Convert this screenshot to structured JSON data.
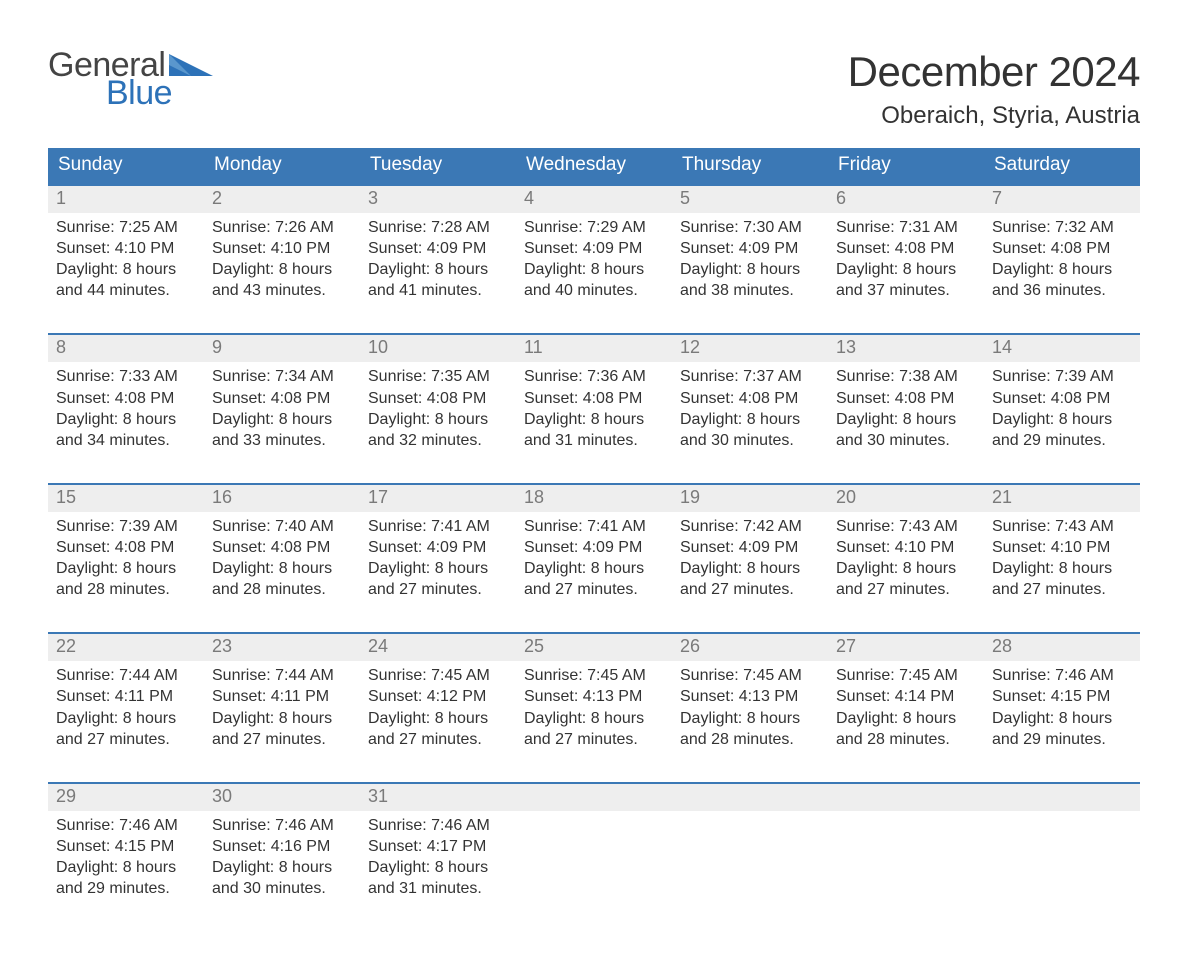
{
  "brand": {
    "word1": "General",
    "word2": "Blue",
    "tri_color": "#2d72b8",
    "word1_color": "#444444",
    "word2_color": "#2d72b8"
  },
  "title": "December 2024",
  "location": "Oberaich, Styria, Austria",
  "colors": {
    "header_bg": "#3b78b5",
    "header_text": "#ffffff",
    "week_border": "#3b78b5",
    "daynum_bg": "#eeeeee",
    "daynum_text": "#7a7a7a",
    "body_text": "#333333",
    "page_bg": "#ffffff"
  },
  "dow": [
    "Sunday",
    "Monday",
    "Tuesday",
    "Wednesday",
    "Thursday",
    "Friday",
    "Saturday"
  ],
  "weeks": [
    [
      {
        "num": "1",
        "sunrise": "7:25 AM",
        "sunset": "4:10 PM",
        "dl1": "8 hours",
        "dl2": "and 44 minutes."
      },
      {
        "num": "2",
        "sunrise": "7:26 AM",
        "sunset": "4:10 PM",
        "dl1": "8 hours",
        "dl2": "and 43 minutes."
      },
      {
        "num": "3",
        "sunrise": "7:28 AM",
        "sunset": "4:09 PM",
        "dl1": "8 hours",
        "dl2": "and 41 minutes."
      },
      {
        "num": "4",
        "sunrise": "7:29 AM",
        "sunset": "4:09 PM",
        "dl1": "8 hours",
        "dl2": "and 40 minutes."
      },
      {
        "num": "5",
        "sunrise": "7:30 AM",
        "sunset": "4:09 PM",
        "dl1": "8 hours",
        "dl2": "and 38 minutes."
      },
      {
        "num": "6",
        "sunrise": "7:31 AM",
        "sunset": "4:08 PM",
        "dl1": "8 hours",
        "dl2": "and 37 minutes."
      },
      {
        "num": "7",
        "sunrise": "7:32 AM",
        "sunset": "4:08 PM",
        "dl1": "8 hours",
        "dl2": "and 36 minutes."
      }
    ],
    [
      {
        "num": "8",
        "sunrise": "7:33 AM",
        "sunset": "4:08 PM",
        "dl1": "8 hours",
        "dl2": "and 34 minutes."
      },
      {
        "num": "9",
        "sunrise": "7:34 AM",
        "sunset": "4:08 PM",
        "dl1": "8 hours",
        "dl2": "and 33 minutes."
      },
      {
        "num": "10",
        "sunrise": "7:35 AM",
        "sunset": "4:08 PM",
        "dl1": "8 hours",
        "dl2": "and 32 minutes."
      },
      {
        "num": "11",
        "sunrise": "7:36 AM",
        "sunset": "4:08 PM",
        "dl1": "8 hours",
        "dl2": "and 31 minutes."
      },
      {
        "num": "12",
        "sunrise": "7:37 AM",
        "sunset": "4:08 PM",
        "dl1": "8 hours",
        "dl2": "and 30 minutes."
      },
      {
        "num": "13",
        "sunrise": "7:38 AM",
        "sunset": "4:08 PM",
        "dl1": "8 hours",
        "dl2": "and 30 minutes."
      },
      {
        "num": "14",
        "sunrise": "7:39 AM",
        "sunset": "4:08 PM",
        "dl1": "8 hours",
        "dl2": "and 29 minutes."
      }
    ],
    [
      {
        "num": "15",
        "sunrise": "7:39 AM",
        "sunset": "4:08 PM",
        "dl1": "8 hours",
        "dl2": "and 28 minutes."
      },
      {
        "num": "16",
        "sunrise": "7:40 AM",
        "sunset": "4:08 PM",
        "dl1": "8 hours",
        "dl2": "and 28 minutes."
      },
      {
        "num": "17",
        "sunrise": "7:41 AM",
        "sunset": "4:09 PM",
        "dl1": "8 hours",
        "dl2": "and 27 minutes."
      },
      {
        "num": "18",
        "sunrise": "7:41 AM",
        "sunset": "4:09 PM",
        "dl1": "8 hours",
        "dl2": "and 27 minutes."
      },
      {
        "num": "19",
        "sunrise": "7:42 AM",
        "sunset": "4:09 PM",
        "dl1": "8 hours",
        "dl2": "and 27 minutes."
      },
      {
        "num": "20",
        "sunrise": "7:43 AM",
        "sunset": "4:10 PM",
        "dl1": "8 hours",
        "dl2": "and 27 minutes."
      },
      {
        "num": "21",
        "sunrise": "7:43 AM",
        "sunset": "4:10 PM",
        "dl1": "8 hours",
        "dl2": "and 27 minutes."
      }
    ],
    [
      {
        "num": "22",
        "sunrise": "7:44 AM",
        "sunset": "4:11 PM",
        "dl1": "8 hours",
        "dl2": "and 27 minutes."
      },
      {
        "num": "23",
        "sunrise": "7:44 AM",
        "sunset": "4:11 PM",
        "dl1": "8 hours",
        "dl2": "and 27 minutes."
      },
      {
        "num": "24",
        "sunrise": "7:45 AM",
        "sunset": "4:12 PM",
        "dl1": "8 hours",
        "dl2": "and 27 minutes."
      },
      {
        "num": "25",
        "sunrise": "7:45 AM",
        "sunset": "4:13 PM",
        "dl1": "8 hours",
        "dl2": "and 27 minutes."
      },
      {
        "num": "26",
        "sunrise": "7:45 AM",
        "sunset": "4:13 PM",
        "dl1": "8 hours",
        "dl2": "and 28 minutes."
      },
      {
        "num": "27",
        "sunrise": "7:45 AM",
        "sunset": "4:14 PM",
        "dl1": "8 hours",
        "dl2": "and 28 minutes."
      },
      {
        "num": "28",
        "sunrise": "7:46 AM",
        "sunset": "4:15 PM",
        "dl1": "8 hours",
        "dl2": "and 29 minutes."
      }
    ],
    [
      {
        "num": "29",
        "sunrise": "7:46 AM",
        "sunset": "4:15 PM",
        "dl1": "8 hours",
        "dl2": "and 29 minutes."
      },
      {
        "num": "30",
        "sunrise": "7:46 AM",
        "sunset": "4:16 PM",
        "dl1": "8 hours",
        "dl2": "and 30 minutes."
      },
      {
        "num": "31",
        "sunrise": "7:46 AM",
        "sunset": "4:17 PM",
        "dl1": "8 hours",
        "dl2": "and 31 minutes."
      },
      null,
      null,
      null,
      null
    ]
  ],
  "labels": {
    "sunrise": "Sunrise: ",
    "sunset": "Sunset: ",
    "daylight": "Daylight: "
  }
}
